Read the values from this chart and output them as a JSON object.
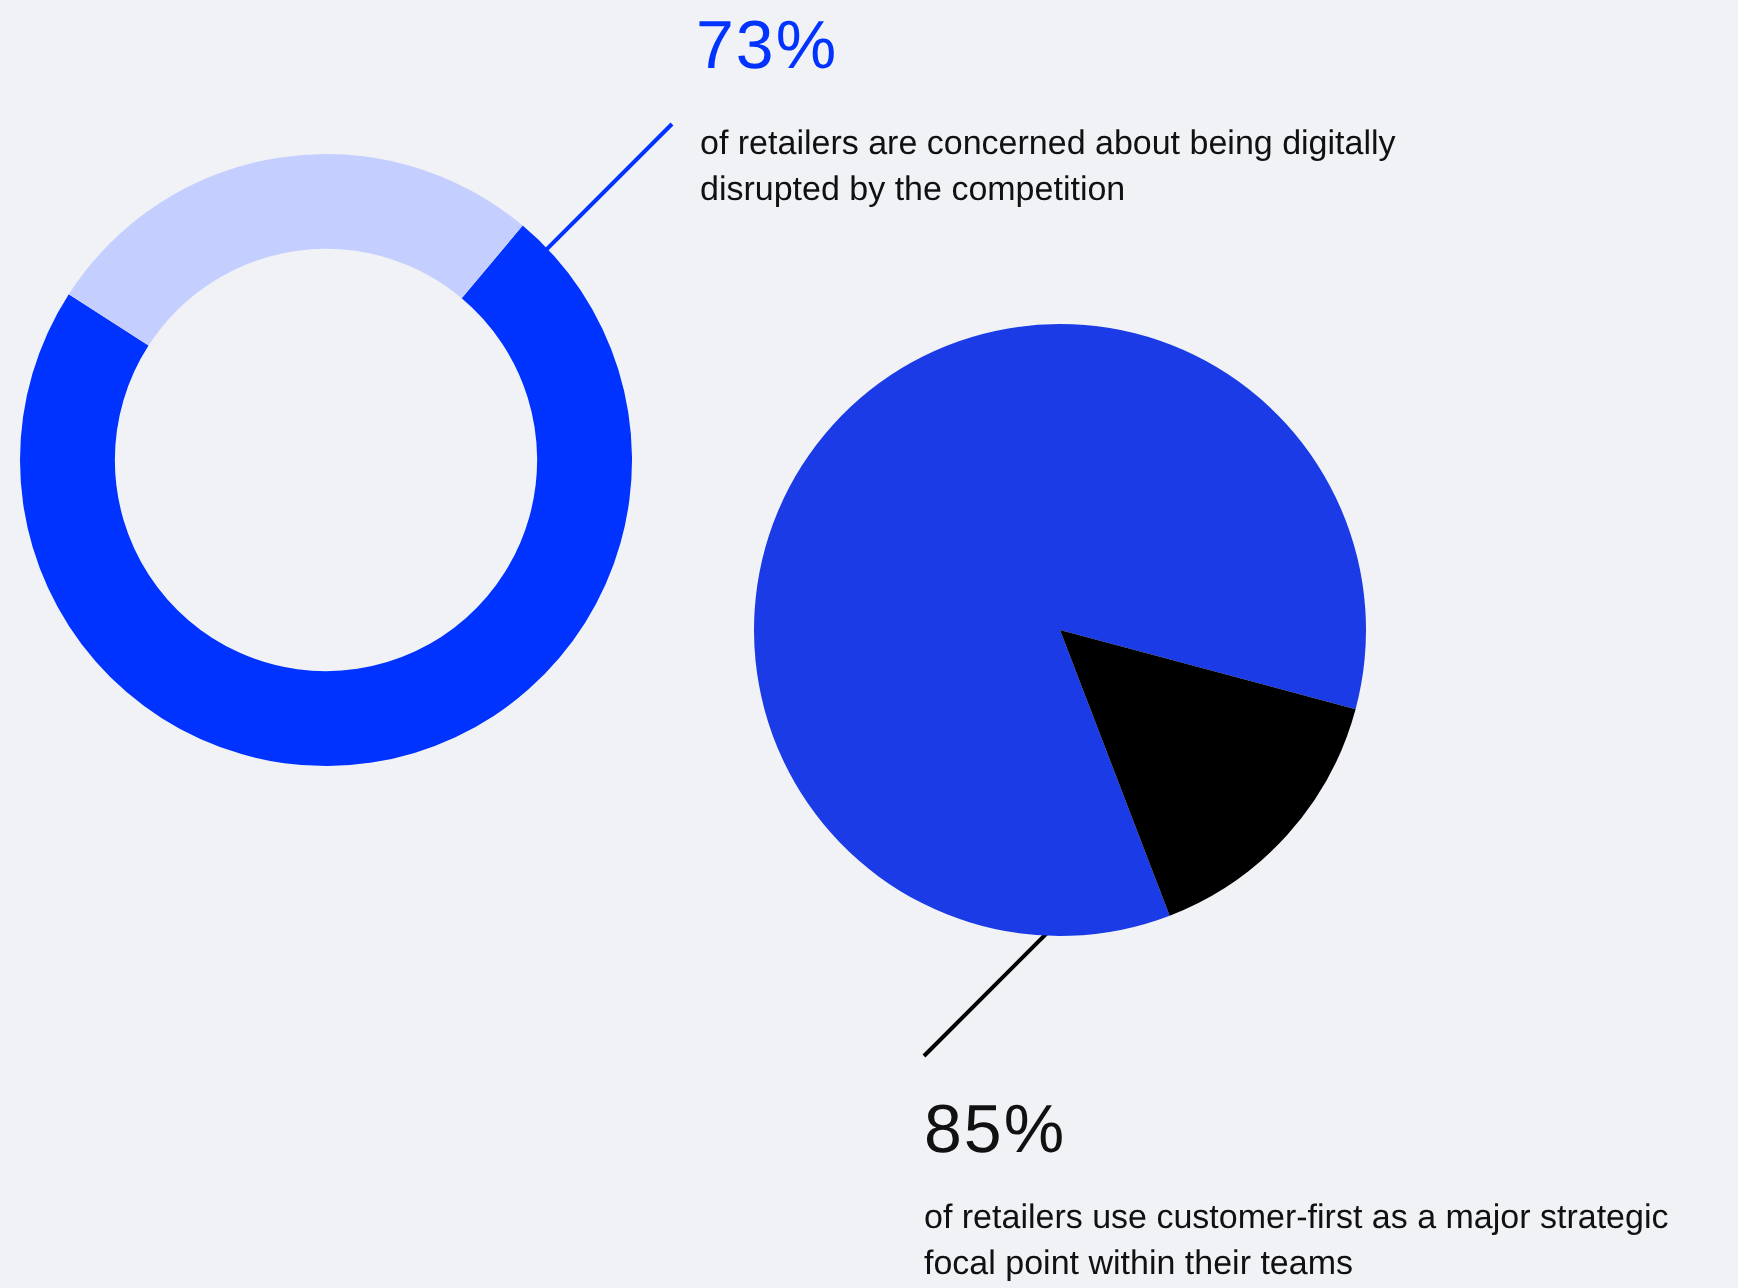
{
  "chart_data": [
    {
      "type": "donut",
      "categories": [
        null,
        null
      ],
      "values": [
        73,
        27
      ],
      "colors": [
        "#0033ff",
        "#c5cfff"
      ],
      "value_labels": [
        "73%",
        null
      ],
      "legend": false,
      "annotations": [
        "of retailers are concerned about being digitally disrupted by the competition"
      ]
    },
    {
      "type": "pie",
      "categories": [
        null,
        null
      ],
      "values": [
        85,
        15
      ],
      "colors": [
        "#1a3be6",
        "#000000"
      ],
      "value_labels": [
        "85%",
        null
      ],
      "legend": false,
      "annotations": [
        "of retailers use customer-first as a major strategic focal point within their teams"
      ]
    }
  ]
}
